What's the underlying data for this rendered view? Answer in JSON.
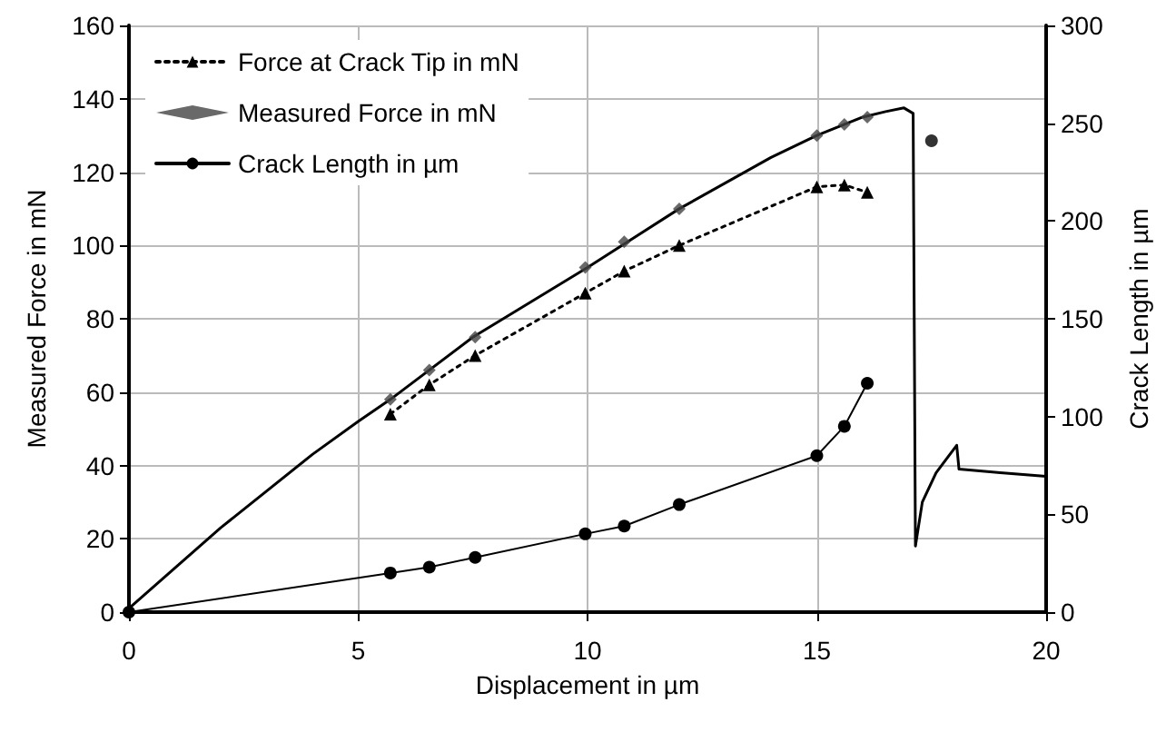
{
  "chart_data": {
    "type": "line",
    "xlabel": "Displacement in µm",
    "ylabel": "Measured Force in mN",
    "y2label": "Crack Length in µm",
    "xlim": [
      0,
      20
    ],
    "xticks": [
      0,
      5,
      10,
      15,
      20
    ],
    "ylim": [
      0,
      160
    ],
    "yticks": [
      0,
      20,
      40,
      60,
      80,
      100,
      120,
      140,
      160
    ],
    "y2lim": [
      0,
      300
    ],
    "y2ticks": [
      0,
      50,
      100,
      150,
      200,
      250,
      300
    ],
    "grid": true,
    "legend": "top left",
    "series": [
      {
        "color": "#000000",
        "marker": "none",
        "line_style": "solid",
        "x": [
          0,
          2,
          4,
          5,
          5.7,
          7.5,
          10,
          12,
          14,
          15,
          16,
          16.5,
          16.9,
          17.1,
          17.15,
          17.3,
          17.6,
          18.05,
          18.1,
          19,
          20
        ],
        "values": [
          1,
          23,
          43,
          52,
          58,
          75,
          94,
          110,
          124,
          130,
          135,
          136.5,
          137.5,
          136,
          18,
          30,
          38,
          45.5,
          39,
          38,
          37
        ]
      },
      {
        "name": "Force at Crack Tip in mN",
        "color": "#000000",
        "marker": "triangle",
        "line_style": "dotted",
        "x": [
          5.7,
          6.55,
          7.55,
          9.95,
          10.8,
          12,
          15,
          15.6,
          16.1
        ],
        "values": [
          54,
          62,
          70,
          87,
          93,
          100,
          116,
          116.5,
          114.5
        ]
      },
      {
        "type": "scatter",
        "name": "Measured Force in mN",
        "color": "#444444",
        "marker": "diamond",
        "x": [
          5.7,
          6.55,
          7.55,
          9.95,
          10.8,
          12,
          15,
          15.6,
          16.1
        ],
        "values": [
          58,
          66,
          75,
          94,
          101,
          110,
          130,
          133,
          135
        ]
      },
      {
        "name": "Crack Length in µm",
        "axis": "y2",
        "color": "#000000",
        "marker": "circle",
        "line_style": "solid",
        "x": [
          0,
          5.7,
          6.55,
          7.55,
          9.95,
          10.8,
          12,
          15,
          15.6,
          16.1
        ],
        "values": [
          0,
          20,
          23,
          28,
          40,
          44,
          55,
          80,
          95,
          117
        ]
      },
      {
        "type": "scatter",
        "axis": "y2",
        "color": "#000000",
        "marker": "circle",
        "x": [
          17.5
        ],
        "values": [
          241
        ]
      }
    ]
  }
}
